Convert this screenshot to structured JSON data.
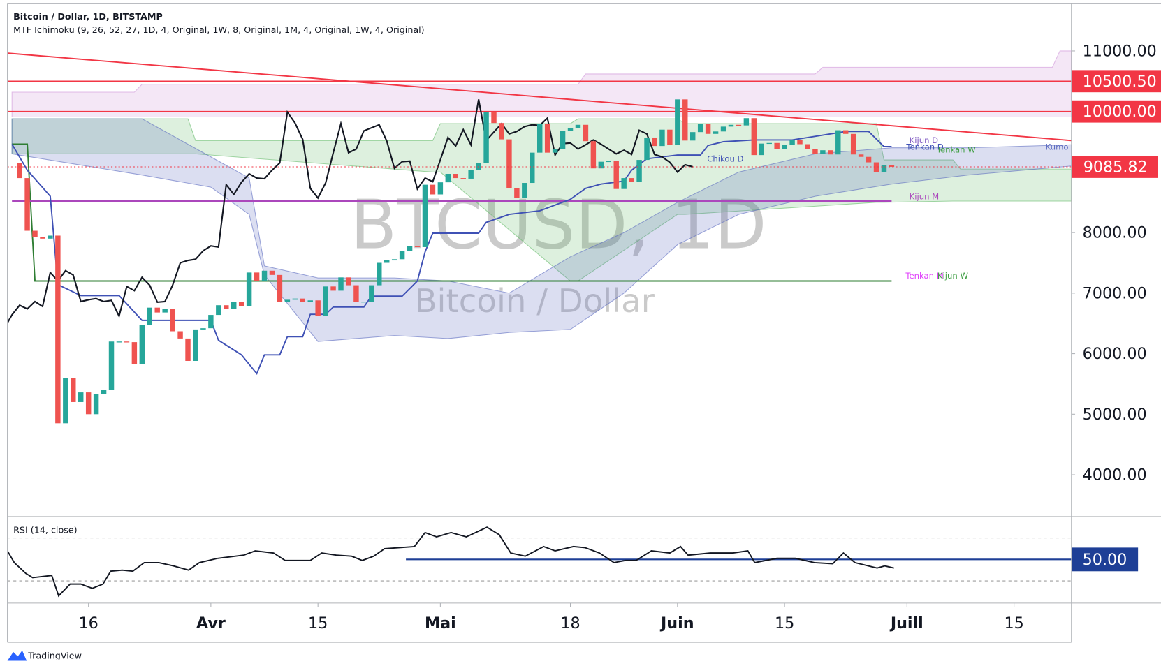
{
  "header": {
    "title": "Bitcoin / Dollar, 1D, BITSTAMP",
    "indicator": "MTF Ichimoku (9, 26, 52, 27, 1D, 4, Original, 1W, 8, Original, 1M, 4, Original, 1W, 4, Original)"
  },
  "watermark": {
    "symbol": "BTCUSD, 1D",
    "name": "Bitcoin / Dollar"
  },
  "branding": "TradingView",
  "chart_data": [
    {
      "type": "candlestick",
      "xlim": [
        4.4,
        143.5
      ],
      "ylim": [
        3310,
        11780
      ],
      "xticks": [
        {
          "value": 15,
          "label": "16"
        },
        {
          "value": 31,
          "label": "Avr"
        },
        {
          "value": 45,
          "label": "15"
        },
        {
          "value": 61,
          "label": "Mai"
        },
        {
          "value": 78,
          "label": "18"
        },
        {
          "value": 92,
          "label": "Juin"
        },
        {
          "value": 106,
          "label": "15"
        },
        {
          "value": 122,
          "label": "Juill"
        },
        {
          "value": 136,
          "label": "15"
        }
      ],
      "yticks": [
        {
          "value": 11000,
          "label": "11000.00"
        },
        {
          "value": 8000,
          "label": "8000.00"
        },
        {
          "value": 7000,
          "label": "7000.00"
        },
        {
          "value": 6000,
          "label": "6000.00"
        },
        {
          "value": 5000,
          "label": "5000.00"
        },
        {
          "value": 4000,
          "label": "4000.00"
        }
      ],
      "up_color": "#26a69a",
      "down_color": "#ef5350",
      "last_price_color": "#f23645",
      "first_open": 9150,
      "x": [
        6,
        7,
        8,
        9,
        10,
        11,
        12,
        13,
        14,
        15,
        16,
        17,
        18,
        19,
        20,
        21,
        22,
        23,
        24,
        25,
        26,
        27,
        28,
        29,
        30,
        31,
        32,
        33,
        34,
        35,
        36,
        37,
        38,
        39,
        40,
        41,
        42,
        43,
        44,
        45,
        46,
        47,
        48,
        49,
        50,
        51,
        52,
        53,
        54,
        55,
        56,
        57,
        58,
        59,
        60,
        61,
        62,
        63,
        64,
        65,
        66,
        67,
        68,
        69,
        70,
        71,
        72,
        73,
        74,
        75,
        76,
        77,
        78,
        79,
        80,
        81,
        82,
        83,
        84,
        85,
        86,
        87,
        88,
        89,
        90,
        91,
        92,
        93,
        94,
        95,
        96,
        97,
        98,
        99,
        100,
        101,
        102,
        103,
        104,
        105,
        106,
        107,
        108,
        109,
        110,
        111,
        112,
        113,
        114,
        115,
        116,
        117,
        118,
        119,
        120
      ],
      "closes": [
        8900,
        8030,
        7930,
        7900,
        7950,
        4850,
        5600,
        5200,
        5360,
        5000,
        5330,
        5400,
        6200,
        6200,
        6190,
        5830,
        6470,
        6760,
        6680,
        6740,
        6370,
        6250,
        5880,
        6400,
        6420,
        6640,
        6800,
        6740,
        6860,
        6780,
        7340,
        7200,
        7370,
        7300,
        6860,
        6890,
        6910,
        6860,
        6880,
        6620,
        7110,
        7040,
        7260,
        7130,
        6850,
        6860,
        7130,
        7500,
        7540,
        7560,
        7700,
        7780,
        7760,
        8790,
        8630,
        8830,
        8970,
        8900,
        8890,
        9030,
        9150,
        9990,
        9810,
        9540,
        8730,
        8570,
        8820,
        9320,
        9800,
        9320,
        9380,
        9680,
        9730,
        9780,
        9510,
        9060,
        9170,
        9180,
        8720,
        8900,
        8840,
        9200,
        9570,
        9430,
        9700,
        9450,
        10200,
        9520,
        9660,
        9800,
        9630,
        9670,
        9750,
        9780,
        9770,
        9890,
        9280,
        9470,
        9480,
        9380,
        9450,
        9530,
        9460,
        9380,
        9300,
        9360,
        9290,
        9690,
        9630,
        9290,
        9250,
        9160,
        9000,
        9120,
        9085.82
      ],
      "chikou": {
        "offset": 26,
        "color": "#131722"
      },
      "clouds": [
        {
          "color": "#66bb6a",
          "x": [
            5,
            28,
            29,
            60,
            61,
            78,
            79,
            92,
            93,
            118,
            119,
            128,
            129,
            143.5
          ],
          "upper": [
            9880,
            9880,
            9520,
            9520,
            9800,
            9800,
            9880,
            9880,
            9800,
            9800,
            9200,
            9200,
            9050,
            9050
          ],
          "lower": [
            9300,
            9300,
            9300,
            9000,
            9000,
            7200,
            7200,
            8300,
            8300,
            8500,
            8500,
            8520,
            8520,
            8520
          ]
        },
        {
          "color": "#5c6bc0",
          "x": [
            5,
            22,
            31,
            36,
            38,
            45,
            55,
            62,
            70,
            78,
            85,
            92,
            100,
            110,
            120,
            130,
            143.5
          ],
          "upper": [
            9880,
            9880,
            9250,
            8900,
            7450,
            7250,
            7250,
            7200,
            7000,
            7600,
            8000,
            8500,
            9000,
            9300,
            9400,
            9400,
            9450
          ],
          "lower": [
            9300,
            8950,
            8750,
            8300,
            7300,
            6200,
            6300,
            6250,
            6350,
            6400,
            7000,
            7800,
            8300,
            8600,
            8800,
            8950,
            9100
          ]
        },
        {
          "color": "#ce93d8",
          "x": [
            5,
            21,
            22,
            79,
            80,
            110,
            111,
            141,
            142,
            143.5
          ],
          "upper": [
            10320,
            10320,
            10450,
            10450,
            10620,
            10620,
            10730,
            10730,
            11000,
            11000
          ],
          "lower": [
            9910,
            9910,
            9910,
            9910,
            9910,
            9910,
            9910,
            9910,
            9910,
            9910
          ]
        }
      ],
      "lines": [
        {
          "color": "#2e7d32",
          "x": [
            5,
            7,
            8,
            120
          ],
          "values": [
            9460,
            9460,
            7200,
            7200
          ]
        },
        {
          "color": "#ab47bc",
          "x": [
            5,
            120
          ],
          "values": [
            8520,
            8520
          ]
        },
        {
          "color": "#3f51b5",
          "x": [
            5,
            7,
            10,
            11,
            14,
            19,
            22,
            31,
            32,
            35,
            37,
            38,
            40,
            41,
            43,
            44,
            46,
            47,
            51,
            52,
            56,
            58,
            59,
            60,
            66,
            67,
            70,
            74,
            78,
            80,
            82,
            85,
            86,
            88,
            92,
            95,
            96,
            98,
            102,
            107,
            114,
            117,
            119,
            120
          ],
          "values": [
            9460,
            9030,
            8600,
            7140,
            6960,
            6960,
            6550,
            6550,
            6220,
            5980,
            5670,
            5980,
            5980,
            6280,
            6280,
            6650,
            6650,
            6770,
            6770,
            6950,
            6950,
            7200,
            7680,
            7990,
            7990,
            8170,
            8300,
            8360,
            8550,
            8730,
            8800,
            8850,
            9030,
            9220,
            9280,
            9280,
            9440,
            9500,
            9530,
            9530,
            9670,
            9670,
            9420,
            9420
          ]
        },
        {
          "color": "#f23645",
          "x": [
            4.4,
            143.5
          ],
          "values": [
            10963,
            9520
          ]
        }
      ],
      "hlines": [
        {
          "value": 10500.5,
          "label": "10500.50",
          "color": "#f23645"
        },
        {
          "value": 10000,
          "label": "10000.00",
          "color": "#f23645"
        }
      ],
      "annotations": [
        {
          "text": "Kijun D",
          "color": "#7e57c2"
        },
        {
          "text": "Tenkan D",
          "color": "#3f51b5"
        },
        {
          "text": "Tenkan W",
          "color": "#43a047"
        },
        {
          "text": "Kumo",
          "color": "#5c6bc0"
        },
        {
          "text": "Chikou D",
          "color": "#3f51b5"
        },
        {
          "text": "Kijun M",
          "color": "#ab47bc"
        },
        {
          "text": "Tenkan M",
          "color": "#e040fb"
        },
        {
          "text": "Kijun W",
          "color": "#43a047"
        }
      ]
    },
    {
      "type": "line",
      "title": "RSI (14, close)",
      "ylim": [
        9.3,
        90
      ],
      "color": "#131722",
      "x": [
        4.4,
        5.3,
        6.8,
        7.7,
        10.2,
        11.1,
        12.6,
        14,
        15.5,
        16.9,
        17.9,
        19.4,
        20.8,
        22.3,
        24.2,
        26.1,
        28.1,
        29.5,
        31.9,
        35.3,
        36.8,
        39.2,
        40.7,
        44,
        45.5,
        47.4,
        49.4,
        50.8,
        52.3,
        53.7,
        57.6,
        59,
        60.5,
        62.4,
        64.4,
        67.1,
        68.7,
        70.2,
        72.1,
        74.5,
        76,
        78.4,
        79.9,
        81.8,
        83.7,
        85.2,
        86.6,
        88.6,
        91,
        92.4,
        93.4,
        96.3,
        99.2,
        101.2,
        102.1,
        105,
        107.4,
        109.9,
        112.3,
        113.7,
        115.2,
        118.1,
        119.1,
        120.3
      ],
      "values": [
        58,
        47,
        37,
        33,
        35,
        16,
        27,
        27,
        23,
        27,
        39,
        40,
        39,
        47,
        47,
        44,
        40,
        47,
        51,
        54,
        58,
        56,
        49,
        49,
        56,
        54,
        53,
        49,
        53,
        60,
        62,
        75,
        71,
        75,
        71,
        80,
        73,
        56,
        53,
        62,
        58,
        62,
        61,
        56,
        47,
        49,
        49,
        58,
        56,
        62,
        54,
        56,
        56,
        58,
        47,
        51,
        51,
        47,
        46,
        56,
        47,
        42,
        44,
        42
      ],
      "levels": [
        70,
        30
      ],
      "midline": {
        "value": 50,
        "label": "50.00",
        "color": "#1e3f96",
        "from": 56.5
      }
    }
  ]
}
